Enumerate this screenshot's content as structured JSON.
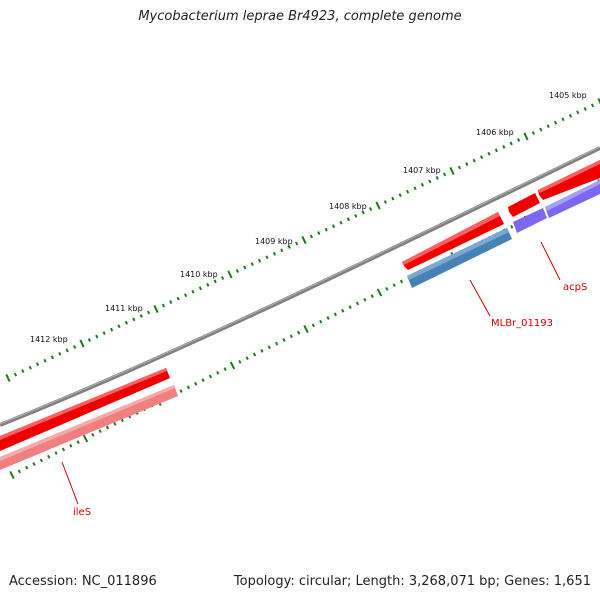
{
  "title": "Mycobacterium leprae Br4923, complete genome",
  "footer": {
    "accession": "Accession: NC_011896",
    "summary": "Topology: circular; Length: 3,268,071 bp; Genes: 1,651"
  },
  "ruler_labels": [
    "1405 kbp",
    "1406 kbp",
    "1407 kbp",
    "1408 kbp",
    "1409 kbp",
    "1410 kbp",
    "1411 kbp",
    "1412 kbp"
  ],
  "gene_labels": {
    "ileS": "ileS",
    "mlbr": "MLBr_01193",
    "acps": "acpS"
  },
  "colors": {
    "backbone": "#808080",
    "forward_gene": "#ee0000",
    "forward_gene_light": "#f08080",
    "reverse_blue": "#4682b4",
    "reverse_purple": "#7b68ee",
    "ticks": "#1e7a1e",
    "label": "#cc0000"
  }
}
